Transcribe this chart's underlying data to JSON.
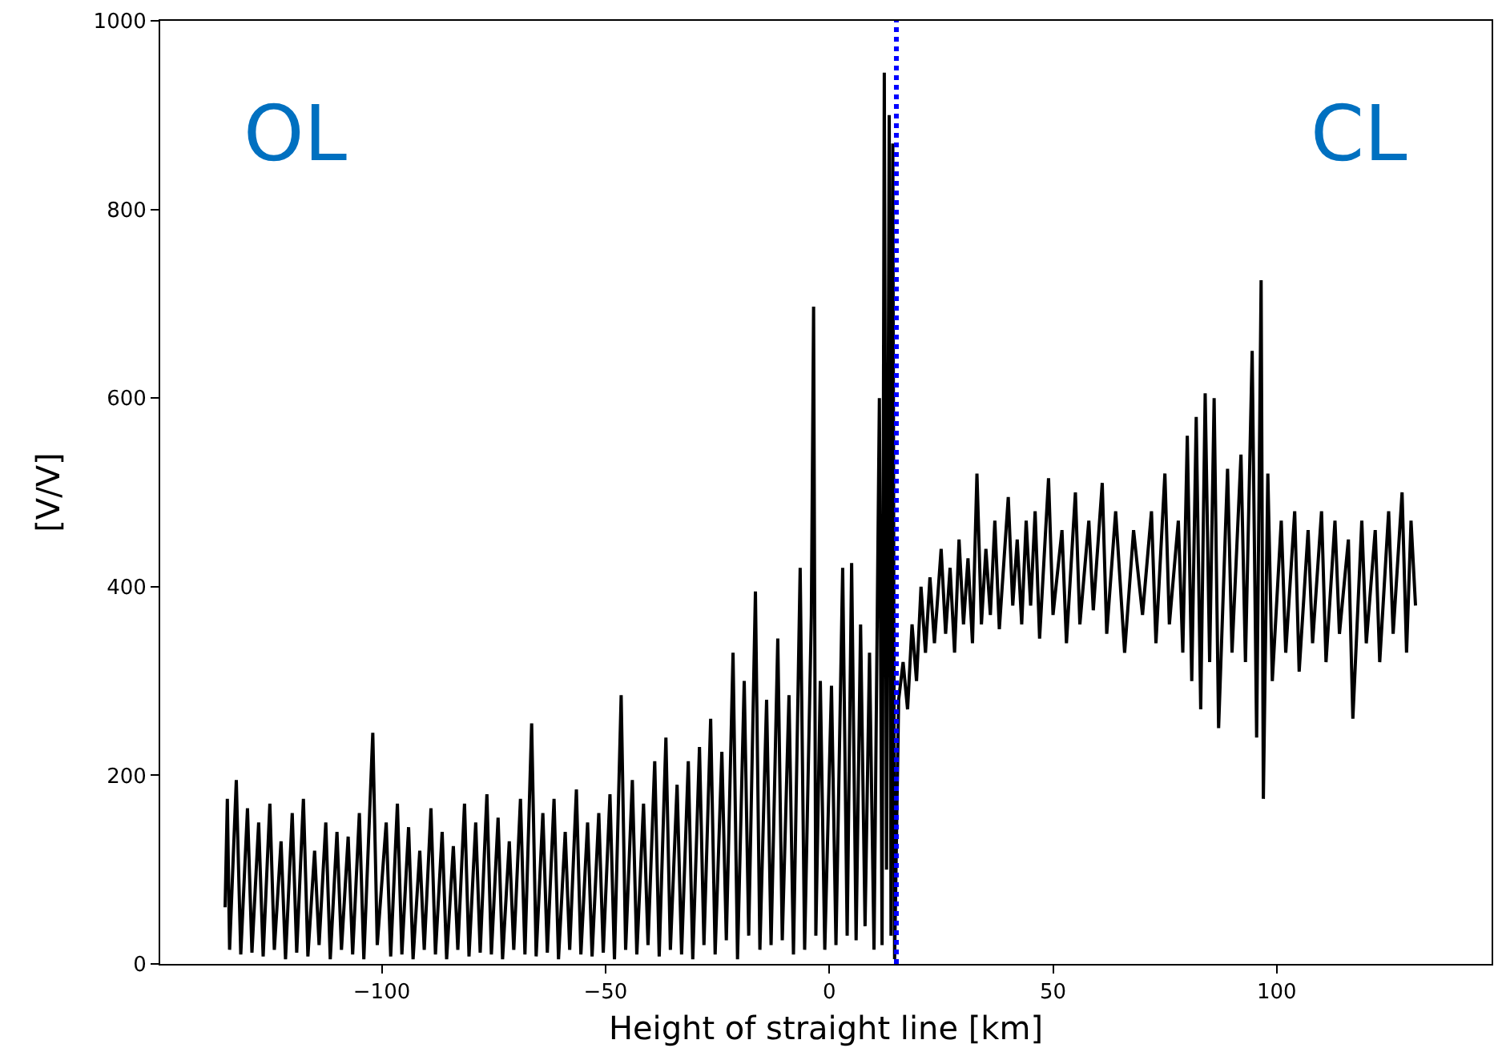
{
  "chart_data": {
    "type": "line",
    "xlabel": "Height of straight line [km]",
    "ylabel": "[V/V]",
    "annotations": [
      "OL",
      "CL"
    ],
    "xlim": [
      -149.5,
      148
    ],
    "ylim": [
      0,
      1000
    ],
    "xticks": [
      -100,
      -50,
      0,
      50,
      100
    ],
    "yticks": [
      0,
      200,
      400,
      600,
      800,
      1000
    ],
    "marker": "none",
    "line_style": "solid",
    "ref_lines": [
      {
        "axis": "x",
        "value": 15,
        "color": "#0000ff",
        "line_style": "dotted"
      }
    ],
    "series": [
      {
        "color": "#000000",
        "x": [
          -135,
          -134.5,
          -134,
          -132.5,
          -131.5,
          -130,
          -129,
          -127.5,
          -126.5,
          -125,
          -124,
          -122.5,
          -121.5,
          -120,
          -119,
          -117.5,
          -116.5,
          -115,
          -114,
          -112.5,
          -111.5,
          -110,
          -109,
          -107.5,
          -106.5,
          -105,
          -104,
          -102,
          -101,
          -99,
          -98,
          -96.5,
          -95.5,
          -94,
          -93,
          -91.5,
          -90.5,
          -89,
          -88,
          -86.5,
          -85.5,
          -84,
          -83,
          -81.5,
          -80.5,
          -79,
          -78,
          -76.5,
          -75.5,
          -74,
          -73,
          -71.5,
          -70.5,
          -69,
          -68,
          -66.5,
          -65.5,
          -64,
          -63,
          -61.5,
          -60.5,
          -59,
          -58,
          -56.5,
          -55.5,
          -54,
          -53,
          -51.5,
          -50.5,
          -49,
          -48,
          -46.5,
          -45.5,
          -44,
          -43,
          -41.5,
          -40.5,
          -39,
          -38,
          -36.5,
          -35.5,
          -34,
          -33,
          -31.5,
          -30.5,
          -29,
          -28,
          -26.5,
          -25.5,
          -24,
          -23,
          -21.5,
          -20.5,
          -19,
          -18,
          -16.5,
          -15.5,
          -14,
          -13,
          -11.5,
          -10.5,
          -9,
          -8,
          -6.5,
          -5.5,
          -4,
          -3.5,
          -3,
          -2,
          -1,
          0.5,
          1.5,
          3,
          4,
          5,
          6,
          7,
          8,
          9,
          10,
          11.2,
          11.8,
          12.3,
          12.8,
          13.4,
          13.8,
          14.2,
          14.6,
          15.5,
          16.5,
          17.5,
          18.5,
          19.5,
          20.5,
          21.5,
          22.5,
          23.5,
          25,
          26,
          27,
          28,
          29,
          30,
          31,
          32,
          33,
          34,
          35,
          36,
          37,
          38,
          40,
          41,
          42,
          43,
          44,
          45,
          46,
          47,
          49,
          50,
          52,
          53,
          55,
          56,
          58,
          59,
          61,
          62,
          64,
          66,
          68,
          70,
          72,
          73,
          75,
          76,
          78,
          79,
          80,
          81,
          82,
          83,
          84,
          85,
          86,
          87,
          89,
          90,
          92,
          93,
          94.5,
          95.5,
          96.5,
          97,
          98,
          99,
          101,
          102,
          104,
          105,
          107,
          108,
          110,
          111,
          113,
          114,
          116,
          117,
          119,
          120,
          122,
          123,
          125,
          126,
          128,
          129,
          130,
          131
        ],
        "values": [
          60,
          175,
          15,
          195,
          10,
          165,
          12,
          150,
          8,
          170,
          15,
          130,
          5,
          160,
          12,
          175,
          8,
          120,
          20,
          150,
          5,
          140,
          15,
          135,
          10,
          160,
          5,
          245,
          20,
          150,
          8,
          170,
          10,
          145,
          5,
          120,
          15,
          165,
          10,
          140,
          5,
          125,
          15,
          170,
          8,
          150,
          12,
          180,
          10,
          155,
          5,
          130,
          15,
          175,
          10,
          255,
          8,
          160,
          12,
          175,
          5,
          140,
          15,
          185,
          10,
          150,
          8,
          160,
          12,
          180,
          5,
          285,
          15,
          195,
          10,
          170,
          20,
          215,
          8,
          240,
          15,
          190,
          10,
          215,
          5,
          230,
          20,
          260,
          10,
          225,
          25,
          330,
          5,
          300,
          30,
          395,
          15,
          280,
          20,
          345,
          25,
          285,
          10,
          420,
          15,
          370,
          697,
          30,
          300,
          15,
          295,
          20,
          420,
          30,
          425,
          25,
          360,
          40,
          330,
          15,
          600,
          20,
          945,
          100,
          900,
          30,
          870,
          5,
          280,
          320,
          270,
          360,
          300,
          400,
          330,
          410,
          340,
          440,
          350,
          420,
          330,
          450,
          360,
          430,
          340,
          520,
          360,
          440,
          370,
          470,
          355,
          495,
          380,
          450,
          360,
          470,
          380,
          480,
          345,
          515,
          370,
          460,
          340,
          500,
          360,
          470,
          375,
          510,
          350,
          480,
          330,
          460,
          370,
          480,
          340,
          520,
          360,
          470,
          330,
          560,
          300,
          580,
          270,
          605,
          320,
          600,
          250,
          525,
          330,
          540,
          320,
          650,
          240,
          725,
          175,
          520,
          300,
          470,
          330,
          480,
          310,
          460,
          340,
          480,
          320,
          470,
          350,
          450,
          260,
          470,
          340,
          460,
          320,
          480,
          350,
          500,
          330,
          470,
          380
        ]
      }
    ]
  }
}
